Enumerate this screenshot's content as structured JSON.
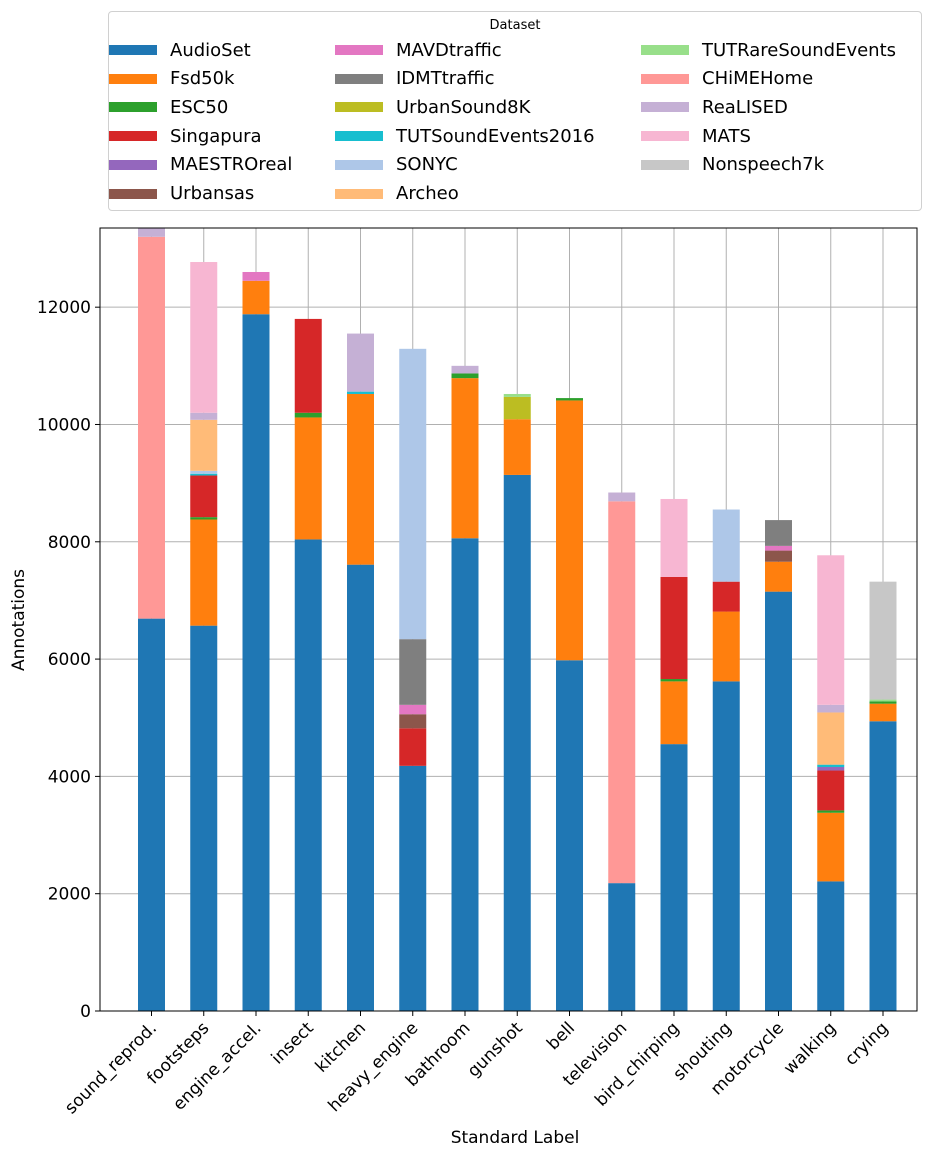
{
  "chart_data": {
    "type": "bar",
    "stacked": true,
    "xlabel": "Standard Label",
    "ylabel": "Annotations",
    "ylim": [
      0,
      13350
    ],
    "yticks": [
      0,
      2000,
      4000,
      6000,
      8000,
      10000,
      12000
    ],
    "grid": true,
    "legend_title": "Dataset",
    "legend_position": "top",
    "categories": [
      "sound_reprod.",
      "footsteps",
      "engine_accel.",
      "insect",
      "kitchen",
      "heavy_engine",
      "bathroom",
      "gunshot",
      "bell",
      "television",
      "bird_chirping",
      "shouting",
      "motorcycle",
      "walking",
      "crying"
    ],
    "series": [
      {
        "name": "AudioSet",
        "color": "#1f77b4",
        "values": [
          6690,
          6570,
          11880,
          8040,
          7610,
          4180,
          8060,
          9140,
          5980,
          2180,
          4550,
          5620,
          7150,
          2210,
          4940
        ]
      },
      {
        "name": "Fsd50k",
        "color": "#ff7f0e",
        "values": [
          0,
          1810,
          570,
          2080,
          2910,
          0,
          2730,
          950,
          4430,
          0,
          1070,
          1190,
          510,
          1170,
          300
        ]
      },
      {
        "name": "ESC50",
        "color": "#2ca02c",
        "values": [
          0,
          40,
          0,
          80,
          0,
          0,
          80,
          0,
          40,
          0,
          40,
          0,
          0,
          40,
          40
        ]
      },
      {
        "name": "Singapura",
        "color": "#d62728",
        "values": [
          0,
          710,
          0,
          1600,
          0,
          640,
          0,
          0,
          0,
          0,
          1740,
          510,
          0,
          680,
          0
        ]
      },
      {
        "name": "MAESTROreal",
        "color": "#9467bd",
        "values": [
          0,
          0,
          0,
          0,
          0,
          0,
          0,
          0,
          0,
          0,
          0,
          0,
          0,
          60,
          0
        ]
      },
      {
        "name": "Urbansas",
        "color": "#8c564b",
        "values": [
          0,
          0,
          0,
          0,
          0,
          240,
          0,
          0,
          0,
          0,
          0,
          0,
          190,
          0,
          0
        ]
      },
      {
        "name": "MAVDtraffic",
        "color": "#e377c2",
        "values": [
          0,
          0,
          150,
          0,
          0,
          160,
          0,
          0,
          0,
          0,
          0,
          0,
          80,
          0,
          0
        ]
      },
      {
        "name": "IDMTtraffic",
        "color": "#7f7f7f",
        "values": [
          0,
          0,
          0,
          0,
          0,
          1120,
          0,
          0,
          0,
          0,
          0,
          0,
          440,
          0,
          0
        ]
      },
      {
        "name": "UrbanSound8K",
        "color": "#bcbd22",
        "values": [
          0,
          0,
          0,
          0,
          0,
          0,
          0,
          380,
          0,
          0,
          0,
          0,
          0,
          0,
          0
        ]
      },
      {
        "name": "TUTSoundEvents2016",
        "color": "#17becf",
        "values": [
          0,
          30,
          0,
          0,
          40,
          0,
          0,
          0,
          0,
          0,
          0,
          0,
          0,
          40,
          0
        ]
      },
      {
        "name": "SONYC",
        "color": "#aec7e8",
        "values": [
          0,
          50,
          0,
          0,
          0,
          4950,
          0,
          0,
          0,
          0,
          0,
          1230,
          0,
          0,
          0
        ]
      },
      {
        "name": "Archeo",
        "color": "#ffbb78",
        "values": [
          0,
          870,
          0,
          0,
          0,
          0,
          0,
          0,
          0,
          0,
          0,
          0,
          0,
          890,
          0
        ]
      },
      {
        "name": "TUTRareSoundEvents",
        "color": "#98df8a",
        "values": [
          0,
          0,
          0,
          0,
          0,
          0,
          0,
          50,
          0,
          0,
          0,
          0,
          0,
          0,
          30
        ]
      },
      {
        "name": "CHiMEHome",
        "color": "#ff9896",
        "values": [
          6510,
          0,
          0,
          0,
          0,
          0,
          0,
          0,
          0,
          6510,
          0,
          0,
          0,
          0,
          0
        ]
      },
      {
        "name": "ReaLISED",
        "color": "#c5b0d5",
        "values": [
          150,
          120,
          0,
          0,
          990,
          0,
          130,
          0,
          0,
          150,
          0,
          0,
          0,
          130,
          0
        ]
      },
      {
        "name": "MATS",
        "color": "#f7b6d2",
        "values": [
          0,
          2570,
          0,
          0,
          0,
          0,
          0,
          0,
          0,
          0,
          1330,
          0,
          0,
          2550,
          0
        ]
      },
      {
        "name": "Nonspeech7k",
        "color": "#c7c7c7",
        "values": [
          0,
          0,
          0,
          0,
          0,
          0,
          0,
          0,
          0,
          0,
          0,
          0,
          0,
          0,
          2010
        ]
      }
    ]
  }
}
